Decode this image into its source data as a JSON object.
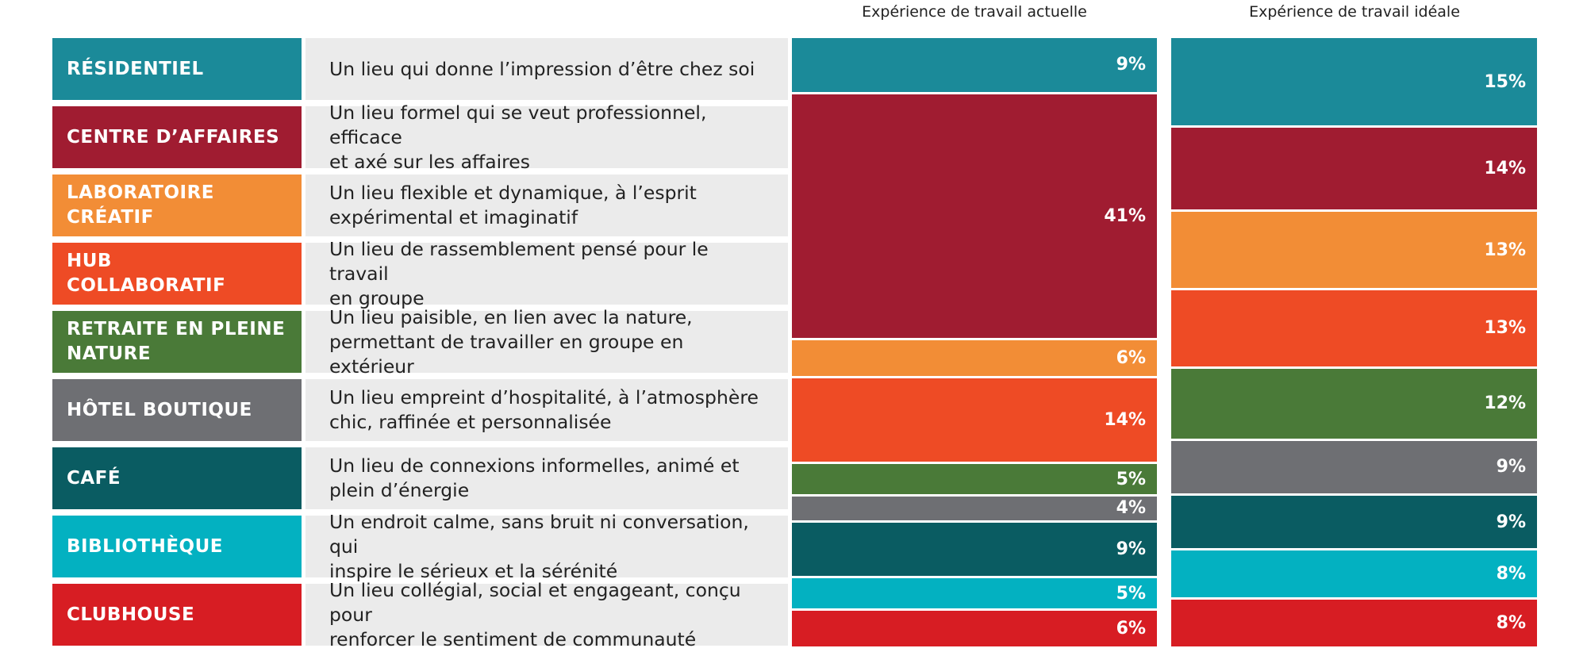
{
  "chart_data": {
    "type": "bar",
    "stacked": true,
    "orientation": "vertical-stacked-100",
    "series_titles": [
      "Expérience de travail actuelle",
      "Expérience de travail idéale"
    ],
    "categories": [
      {
        "label": "RÉSIDENTIEL",
        "description": "Un lieu qui donne l’impression d’être chez soi",
        "color": "#1b8a99"
      },
      {
        "label": "CENTRE D’AFFAIRES",
        "description": "Un lieu formel qui se veut professionnel, efficace\net axé sur les affaires",
        "color": "#a01c31"
      },
      {
        "label": "LABORATOIRE\nCRÉATIF",
        "description": "Un lieu flexible et dynamique, à l’esprit\nexpérimental et imaginatif",
        "color": "#f28d36"
      },
      {
        "label": "HUB\nCOLLABORATIF",
        "description": "Un lieu de rassemblement pensé pour le travail\nen groupe",
        "color": "#ee4b25"
      },
      {
        "label": "RETRAITE EN PLEINE\nNATURE",
        "description": "Un lieu paisible, en lien avec la nature,\npermettant de travailler en groupe en extérieur",
        "color": "#4a7a38"
      },
      {
        "label": "HÔTEL BOUTIQUE",
        "description": "Un lieu empreint d’hospitalité, à l’atmosphère\nchic, raffinée et personnalisée",
        "color": "#6e6f73"
      },
      {
        "label": "CAFÉ",
        "description": "Un lieu de connexions informelles, animé et\nplein d’énergie",
        "color": "#0a5c62"
      },
      {
        "label": "BIBLIOTHÈQUE",
        "description": "Un endroit calme, sans bruit ni conversation, qui\ninspire le sérieux et la sérénité",
        "color": "#03b1c1"
      },
      {
        "label": "CLUBHOUSE",
        "description": "Un lieu collégial, social et engageant, conçu pour\nrenforcer le sentiment de communauté",
        "color": "#d71d23"
      }
    ],
    "series": [
      {
        "name": "Expérience de travail actuelle",
        "values": [
          9,
          41,
          6,
          14,
          5,
          4,
          9,
          5,
          6
        ]
      },
      {
        "name": "Expérience de travail idéale",
        "values": [
          15,
          14,
          13,
          13,
          12,
          9,
          9,
          8,
          8
        ]
      }
    ],
    "value_suffix": "%"
  }
}
